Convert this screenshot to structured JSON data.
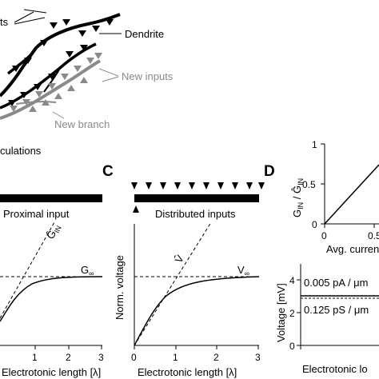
{
  "panel_a": {
    "inputs_label": "ts",
    "dendrite_label": "Dendrite",
    "new_inputs_label": "New inputs",
    "new_branch_label": "New branch",
    "calc_label": "culations"
  },
  "panel_b": {
    "input_label": "Proximal input",
    "g_label": "Ĝ",
    "g_sub": "IN",
    "ginf_label": "G",
    "ginf_sub": "∞",
    "x_axis_label": "Electrotonic length [λ]",
    "x_ticks": [
      "1",
      "2",
      "3"
    ]
  },
  "panel_c": {
    "letter": "C",
    "input_label": "Distributed inputs",
    "y_axis_label": "Norm. voltage",
    "v_label": "V̂",
    "vinf_label": "V",
    "vinf_sub": "∞",
    "x_axis_label": "Electrotonic length [λ]",
    "x_ticks": [
      "0",
      "1",
      "2",
      "3"
    ]
  },
  "panel_d": {
    "letter": "D",
    "top": {
      "y_axis_label": "G",
      "y_sub": "IN",
      "y_div": " / Ĝ",
      "y_ticks": [
        "1",
        "0.5",
        "0"
      ],
      "x_ticks": [
        "0",
        "0.5"
      ],
      "x_axis_label": "Avg. current"
    },
    "bottom": {
      "y_axis_label": "Voltage [mV]",
      "y_ticks": [
        "4",
        "2",
        "0"
      ],
      "line1_label": "0.005 pA / μm",
      "line2_label": "0.125 pS / μm",
      "x_axis_label": "Electrotonic lo"
    }
  },
  "colors": {
    "black": "#000000",
    "grey": "#8a8a8a"
  }
}
